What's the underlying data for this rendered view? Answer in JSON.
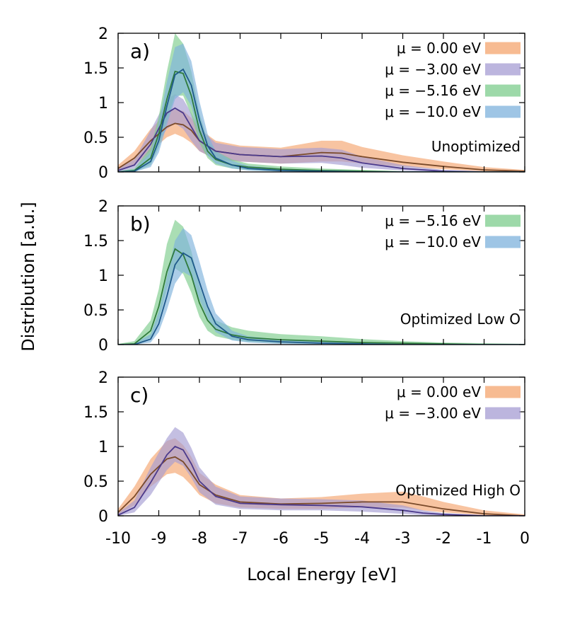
{
  "figure": {
    "ylabel": "Distribution [a.u.]",
    "xlabel": "Local Energy [eV]"
  },
  "chart_data": [
    {
      "type": "area",
      "panel": "a)",
      "annotation": "Unoptimized",
      "xlim": [
        -10,
        0
      ],
      "ylim": [
        0,
        2
      ],
      "x_ticks": [
        "-10",
        "-9",
        "-8",
        "-7",
        "-6",
        "-5",
        "-4",
        "-3",
        "-2",
        "-1",
        "0"
      ],
      "y_ticks": [
        "0",
        "0.5",
        "1",
        "1.5",
        "2"
      ],
      "legend_position": "top-right",
      "series": [
        {
          "name": "μ =   0.00 eV",
          "fill": "#f4a46e",
          "line": "#7a4a2a",
          "x": [
            -10,
            -9.6,
            -9.2,
            -8.8,
            -8.6,
            -8.4,
            -8.2,
            -8.0,
            -7.6,
            -7,
            -6,
            -5,
            -4.5,
            -4,
            -3,
            -2,
            -1,
            0
          ],
          "mean": [
            0.05,
            0.2,
            0.45,
            0.65,
            0.7,
            0.68,
            0.6,
            0.45,
            0.3,
            0.25,
            0.22,
            0.28,
            0.27,
            0.22,
            0.14,
            0.08,
            0.03,
            0.01
          ],
          "low": [
            0.02,
            0.1,
            0.3,
            0.5,
            0.55,
            0.5,
            0.42,
            0.3,
            0.18,
            0.15,
            0.12,
            0.15,
            0.15,
            0.12,
            0.08,
            0.04,
            0.01,
            0.0
          ],
          "high": [
            0.1,
            0.3,
            0.62,
            0.85,
            0.9,
            0.88,
            0.78,
            0.62,
            0.45,
            0.38,
            0.35,
            0.45,
            0.45,
            0.36,
            0.24,
            0.15,
            0.07,
            0.03
          ]
        },
        {
          "name": "μ = −3.00 eV",
          "fill": "#a59cd3",
          "line": "#4b3a8c",
          "x": [
            -10,
            -9.6,
            -9.2,
            -8.8,
            -8.6,
            -8.4,
            -8.2,
            -8.0,
            -7.6,
            -7,
            -6,
            -5,
            -4.5,
            -4,
            -3,
            -2,
            -1,
            0
          ],
          "mean": [
            0.02,
            0.1,
            0.4,
            0.85,
            0.92,
            0.85,
            0.65,
            0.45,
            0.3,
            0.25,
            0.22,
            0.23,
            0.2,
            0.13,
            0.05,
            0.01,
            0.0,
            0.0
          ],
          "low": [
            0.0,
            0.05,
            0.25,
            0.62,
            0.7,
            0.62,
            0.45,
            0.3,
            0.18,
            0.15,
            0.12,
            0.13,
            0.1,
            0.06,
            0.02,
            0.0,
            0.0,
            0.0
          ],
          "high": [
            0.05,
            0.18,
            0.6,
            1.05,
            1.12,
            1.05,
            0.85,
            0.62,
            0.42,
            0.36,
            0.33,
            0.35,
            0.32,
            0.22,
            0.1,
            0.03,
            0.01,
            0.0
          ]
        },
        {
          "name": "μ = −5.16 eV",
          "fill": "#7ccc8c",
          "line": "#2f7a3c",
          "x": [
            -10,
            -9.6,
            -9.2,
            -9.0,
            -8.8,
            -8.6,
            -8.4,
            -8.2,
            -8.0,
            -7.8,
            -7.6,
            -7.2,
            -6.8,
            -6,
            -5,
            -4,
            -3,
            -2,
            -1,
            0
          ],
          "mean": [
            0.0,
            0.02,
            0.2,
            0.55,
            1.05,
            1.45,
            1.42,
            1.1,
            0.6,
            0.3,
            0.18,
            0.1,
            0.07,
            0.04,
            0.02,
            0.01,
            0.0,
            0.0,
            0.0,
            0.0
          ],
          "low": [
            0.0,
            0.0,
            0.1,
            0.35,
            0.75,
            1.1,
            1.1,
            0.82,
            0.42,
            0.2,
            0.1,
            0.05,
            0.03,
            0.01,
            0.0,
            0.0,
            0.0,
            0.0,
            0.0,
            0.0
          ],
          "high": [
            0.01,
            0.05,
            0.35,
            0.8,
            1.45,
            2.0,
            1.85,
            1.45,
            0.85,
            0.45,
            0.3,
            0.18,
            0.12,
            0.08,
            0.05,
            0.03,
            0.01,
            0.0,
            0.0,
            0.0
          ]
        },
        {
          "name": "μ = −10.0 eV",
          "fill": "#7eb2dc",
          "line": "#1f5a8a",
          "x": [
            -10,
            -9.6,
            -9.2,
            -9.0,
            -8.8,
            -8.6,
            -8.4,
            -8.2,
            -8.0,
            -7.8,
            -7.6,
            -7.2,
            -6.8,
            -6,
            -5,
            -4,
            -3,
            -2,
            -1,
            0
          ],
          "mean": [
            0.0,
            0.01,
            0.15,
            0.45,
            0.95,
            1.4,
            1.48,
            1.25,
            0.75,
            0.38,
            0.2,
            0.1,
            0.05,
            0.02,
            0.01,
            0.0,
            0.0,
            0.0,
            0.0,
            0.0
          ],
          "low": [
            0.0,
            0.0,
            0.07,
            0.28,
            0.68,
            1.05,
            1.15,
            0.95,
            0.52,
            0.24,
            0.12,
            0.05,
            0.02,
            0.0,
            0.0,
            0.0,
            0.0,
            0.0,
            0.0,
            0.0
          ],
          "high": [
            0.01,
            0.04,
            0.28,
            0.7,
            1.3,
            1.8,
            1.85,
            1.6,
            1.02,
            0.55,
            0.3,
            0.16,
            0.09,
            0.05,
            0.02,
            0.01,
            0.0,
            0.0,
            0.0,
            0.0
          ]
        }
      ]
    },
    {
      "type": "area",
      "panel": "b)",
      "annotation": "Optimized Low O",
      "xlim": [
        -10,
        0
      ],
      "ylim": [
        0,
        2
      ],
      "x_ticks": [
        "-10",
        "-9",
        "-8",
        "-7",
        "-6",
        "-5",
        "-4",
        "-3",
        "-2",
        "-1",
        "0"
      ],
      "y_ticks": [
        "0",
        "0.5",
        "1",
        "1.5",
        "2"
      ],
      "legend_position": "top-right",
      "series": [
        {
          "name": "μ = −5.16 eV",
          "fill": "#7ccc8c",
          "line": "#2f7a3c",
          "x": [
            -10,
            -9.6,
            -9.2,
            -9.0,
            -8.8,
            -8.6,
            -8.4,
            -8.2,
            -8.0,
            -7.8,
            -7.6,
            -7.2,
            -6.8,
            -6,
            -5,
            -4,
            -3,
            -2,
            -1,
            0
          ],
          "mean": [
            0.0,
            0.01,
            0.2,
            0.55,
            1.05,
            1.38,
            1.3,
            1.0,
            0.6,
            0.35,
            0.22,
            0.14,
            0.1,
            0.07,
            0.05,
            0.03,
            0.02,
            0.01,
            0.0,
            0.0
          ],
          "low": [
            0.0,
            0.0,
            0.1,
            0.35,
            0.8,
            1.1,
            1.02,
            0.75,
            0.4,
            0.2,
            0.12,
            0.07,
            0.04,
            0.02,
            0.01,
            0.0,
            0.0,
            0.0,
            0.0,
            0.0
          ],
          "high": [
            0.01,
            0.05,
            0.35,
            0.8,
            1.45,
            1.8,
            1.7,
            1.35,
            0.85,
            0.52,
            0.35,
            0.25,
            0.2,
            0.15,
            0.12,
            0.08,
            0.05,
            0.03,
            0.02,
            0.01
          ]
        },
        {
          "name": "μ = −10.0 eV",
          "fill": "#7eb2dc",
          "line": "#1f5a8a",
          "x": [
            -10,
            -9.6,
            -9.2,
            -9.0,
            -8.8,
            -8.6,
            -8.4,
            -8.2,
            -8.0,
            -7.8,
            -7.6,
            -7.2,
            -6.8,
            -6,
            -5,
            -4,
            -3,
            -2,
            -1,
            0
          ],
          "mean": [
            0.0,
            0.0,
            0.08,
            0.3,
            0.7,
            1.15,
            1.32,
            1.25,
            0.9,
            0.55,
            0.3,
            0.12,
            0.07,
            0.04,
            0.02,
            0.01,
            0.0,
            0.0,
            0.0,
            0.0
          ],
          "low": [
            0.0,
            0.0,
            0.03,
            0.18,
            0.5,
            0.88,
            1.05,
            0.98,
            0.65,
            0.38,
            0.18,
            0.06,
            0.03,
            0.01,
            0.0,
            0.0,
            0.0,
            0.0,
            0.0,
            0.0
          ],
          "high": [
            0.0,
            0.02,
            0.15,
            0.48,
            0.98,
            1.5,
            1.68,
            1.58,
            1.2,
            0.78,
            0.45,
            0.2,
            0.12,
            0.07,
            0.04,
            0.02,
            0.01,
            0.0,
            0.0,
            0.0
          ]
        }
      ]
    },
    {
      "type": "area",
      "panel": "c)",
      "annotation": "Optimized High O",
      "xlim": [
        -10,
        0
      ],
      "ylim": [
        0,
        2
      ],
      "x_ticks": [
        "-10",
        "-9",
        "-8",
        "-7",
        "-6",
        "-5",
        "-4",
        "-3",
        "-2",
        "-1",
        "0"
      ],
      "y_ticks": [
        "0",
        "0.5",
        "1",
        "1.5",
        "2"
      ],
      "legend_position": "top-right",
      "series": [
        {
          "name": "μ =   0.00 eV",
          "fill": "#f4a46e",
          "line": "#7a4a2a",
          "x": [
            -10,
            -9.6,
            -9.2,
            -8.8,
            -8.6,
            -8.4,
            -8.2,
            -8.0,
            -7.6,
            -7,
            -6,
            -5,
            -4,
            -3,
            -2.5,
            -2,
            -1,
            0
          ],
          "mean": [
            0.05,
            0.28,
            0.6,
            0.82,
            0.85,
            0.78,
            0.62,
            0.45,
            0.3,
            0.2,
            0.17,
            0.18,
            0.2,
            0.2,
            0.15,
            0.1,
            0.03,
            0.0
          ],
          "low": [
            0.02,
            0.15,
            0.42,
            0.6,
            0.62,
            0.56,
            0.44,
            0.3,
            0.18,
            0.12,
            0.1,
            0.1,
            0.12,
            0.12,
            0.08,
            0.05,
            0.01,
            0.0
          ],
          "high": [
            0.1,
            0.42,
            0.82,
            1.08,
            1.12,
            1.02,
            0.85,
            0.62,
            0.45,
            0.3,
            0.25,
            0.27,
            0.32,
            0.35,
            0.28,
            0.2,
            0.08,
            0.02
          ]
        },
        {
          "name": "μ = −3.00 eV",
          "fill": "#a59cd3",
          "line": "#4b3a8c",
          "x": [
            -10,
            -9.6,
            -9.2,
            -8.8,
            -8.6,
            -8.4,
            -8.2,
            -8.0,
            -7.6,
            -7,
            -6,
            -5,
            -4,
            -3,
            -2.5,
            -2,
            -1,
            0
          ],
          "mean": [
            0.01,
            0.12,
            0.48,
            0.88,
            1.0,
            0.95,
            0.75,
            0.5,
            0.28,
            0.18,
            0.16,
            0.15,
            0.13,
            0.08,
            0.04,
            0.02,
            0.0,
            0.0
          ],
          "low": [
            0.0,
            0.05,
            0.3,
            0.66,
            0.78,
            0.72,
            0.55,
            0.34,
            0.16,
            0.1,
            0.08,
            0.08,
            0.06,
            0.03,
            0.01,
            0.0,
            0.0,
            0.0
          ],
          "high": [
            0.04,
            0.22,
            0.7,
            1.12,
            1.28,
            1.2,
            0.98,
            0.7,
            0.42,
            0.28,
            0.25,
            0.24,
            0.22,
            0.15,
            0.08,
            0.04,
            0.01,
            0.0
          ]
        }
      ]
    }
  ]
}
